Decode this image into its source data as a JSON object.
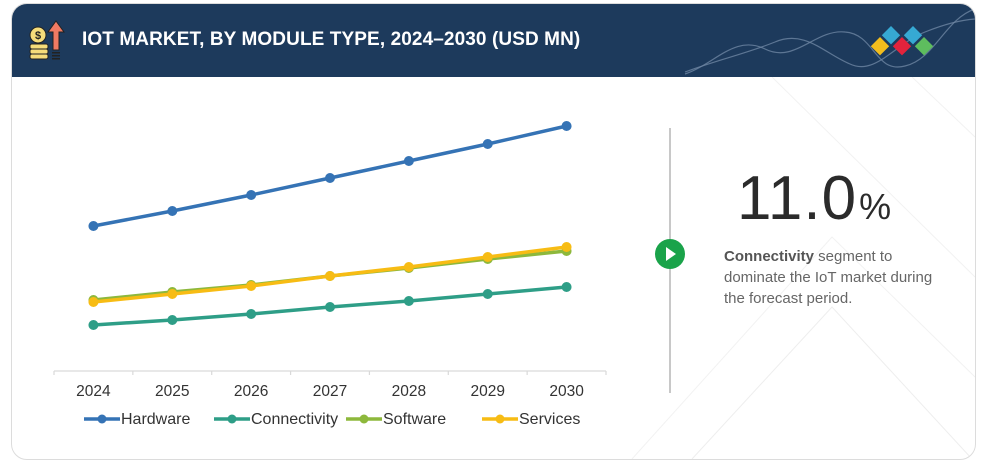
{
  "header": {
    "title": "IOT MARKET, BY MODULE TYPE, 2024–2030 (USD MN)",
    "icon": "coins-growth-arrow-icon",
    "brand_logo": "marketsandmarkets-diamonds-logo"
  },
  "colors": {
    "header_bg": "#1d3a5c",
    "hardware": "#3573b5",
    "connectivity": "#2e9e87",
    "software": "#8db83c",
    "services": "#f7bc14",
    "play_button": "#1aa34a",
    "logo_blue": "#36a9d3",
    "logo_yellow": "#f2bd1d",
    "logo_red": "#e2233c",
    "logo_green": "#5ebd5e"
  },
  "highlight": {
    "value": "11.0",
    "unit": "%",
    "segment": "Connectivity",
    "text": " segment to dominate the IoT market during the forecast period."
  },
  "chart_data": {
    "type": "line",
    "title": "IOT MARKET, BY MODULE TYPE, 2024–2030 (USD MN)",
    "xlabel": "",
    "ylabel": "",
    "x": [
      "2024",
      "2025",
      "2026",
      "2027",
      "2028",
      "2029",
      "2030"
    ],
    "y_axis_visible": false,
    "ylim": [
      0,
      260
    ],
    "y_units": "relative (no y-axis values shown)",
    "grid": false,
    "legend_position": "bottom",
    "series": [
      {
        "name": "Hardware",
        "color": "#3573b5",
        "values": [
          145,
          160,
          176,
          193,
          210,
          227,
          245
        ]
      },
      {
        "name": "Connectivity",
        "color": "#2e9e87",
        "values": [
          46,
          51,
          57,
          64,
          70,
          77,
          84
        ]
      },
      {
        "name": "Software",
        "color": "#8db83c",
        "values": [
          71,
          79,
          86,
          95,
          103,
          112,
          120
        ]
      },
      {
        "name": "Services",
        "color": "#f7bc14",
        "values": [
          69,
          77,
          85,
          95,
          104,
          114,
          124
        ]
      }
    ]
  }
}
